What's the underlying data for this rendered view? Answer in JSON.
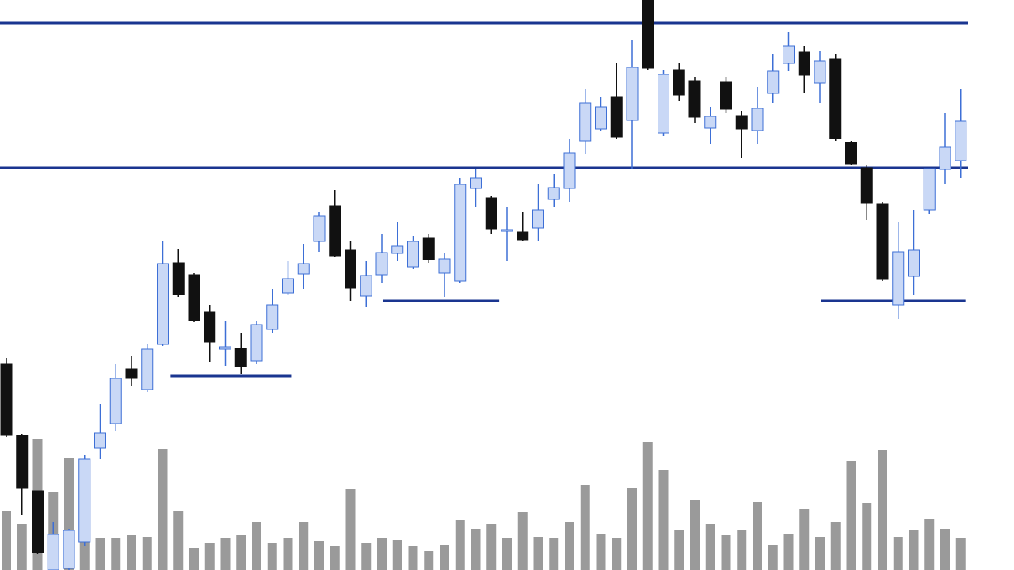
{
  "chart_data": {
    "type": "candlestick",
    "categories": [
      null,
      null,
      null,
      null,
      null,
      null,
      null,
      null,
      null,
      null,
      null,
      null,
      null,
      null,
      null,
      null,
      null,
      null,
      null,
      null,
      null,
      null,
      null,
      null,
      null,
      null,
      null,
      null,
      null,
      null,
      null,
      null,
      null,
      null,
      null,
      null,
      null,
      null,
      null,
      null,
      null,
      null,
      null,
      null,
      null,
      null,
      null,
      null,
      null,
      null,
      null,
      null,
      null,
      null,
      null,
      null,
      null,
      null,
      null,
      null,
      null,
      null
    ],
    "open": [
      260,
      170,
      100,
      0,
      2,
      35,
      154,
      185,
      254,
      228,
      285,
      388,
      373,
      326,
      279,
      280,
      264,
      304,
      350,
      374,
      415,
      460,
      404,
      346,
      373,
      400,
      383,
      420,
      375,
      365,
      482,
      470,
      428,
      427,
      432,
      468,
      482,
      542,
      557,
      598,
      568,
      720,
      552,
      632,
      618,
      558,
      617,
      574,
      555,
      602,
      640,
      654,
      615,
      646,
      540,
      508,
      462,
      335,
      371,
      455,
      506,
      517
    ],
    "high": [
      268,
      172,
      100,
      60,
      52,
      145,
      210,
      260,
      270,
      285,
      415,
      405,
      375,
      335,
      315,
      300,
      315,
      355,
      390,
      412,
      452,
      480,
      415,
      390,
      425,
      440,
      422,
      425,
      400,
      495,
      507,
      472,
      458,
      452,
      488,
      500,
      545,
      608,
      598,
      640,
      670,
      720,
      632,
      640,
      623,
      585,
      623,
      580,
      610,
      652,
      680,
      662,
      655,
      652,
      542,
      512,
      465,
      440,
      455,
      507,
      577,
      608
    ],
    "low": [
      168,
      70,
      20,
      0,
      0,
      30,
      140,
      175,
      232,
      225,
      283,
      345,
      313,
      263,
      258,
      248,
      260,
      300,
      348,
      355,
      402,
      395,
      340,
      332,
      363,
      390,
      380,
      388,
      345,
      362,
      458,
      425,
      390,
      415,
      415,
      458,
      465,
      525,
      555,
      545,
      507,
      632,
      548,
      593,
      565,
      538,
      577,
      520,
      538,
      590,
      630,
      602,
      590,
      542,
      512,
      442,
      365,
      317,
      348,
      450,
      488,
      495
    ],
    "close": [
      170,
      103,
      22,
      45,
      50,
      140,
      173,
      242,
      242,
      279,
      387,
      348,
      315,
      288,
      282,
      257,
      310,
      335,
      368,
      387,
      447,
      397,
      356,
      372,
      401,
      409,
      415,
      392,
      393,
      487,
      495,
      431,
      430,
      417,
      455,
      483,
      527,
      590,
      585,
      547,
      635,
      634,
      626,
      600,
      572,
      573,
      582,
      557,
      583,
      630,
      662,
      625,
      643,
      545,
      513,
      463,
      367,
      402,
      404,
      507,
      534,
      567
    ],
    "volume": [
      75,
      58,
      165,
      98,
      142,
      40,
      40,
      40,
      44,
      42,
      153,
      75,
      28,
      34,
      40,
      44,
      60,
      34,
      40,
      60,
      36,
      30,
      102,
      34,
      40,
      38,
      30,
      24,
      32,
      63,
      52,
      58,
      40,
      73,
      42,
      40,
      60,
      107,
      46,
      40,
      104,
      162,
      126,
      50,
      88,
      58,
      44,
      50,
      86,
      32,
      46,
      77,
      42,
      60,
      138,
      85,
      152,
      42,
      50,
      64,
      52,
      40
    ],
    "ylim": [
      0,
      720
    ],
    "volume_ylim": [
      0,
      720
    ],
    "up_color": "#c9d8f6",
    "up_edge": "#3d6fd6",
    "down_color": "#111111",
    "volume_color": "#9a9a9a",
    "level_color": "#1a3590",
    "levels": [
      {
        "value": 691
      },
      {
        "value": 508
      },
      {
        "value": 245,
        "xrange": [
          10.5,
          18.2
        ]
      },
      {
        "value": 340,
        "xrange": [
          24.05,
          31.5
        ]
      },
      {
        "value": 340,
        "xrange": [
          52.1,
          61.3
        ]
      }
    ]
  }
}
